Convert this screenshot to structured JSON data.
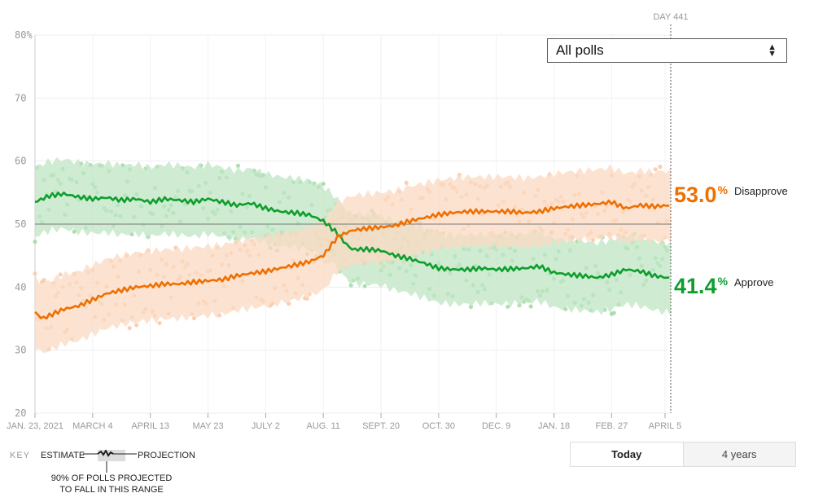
{
  "chart_data": {
    "type": "line",
    "title": "",
    "xlabel": "",
    "ylabel": "",
    "ylim": [
      20,
      80
    ],
    "y_ticks": [
      "80%",
      "70",
      "60",
      "50",
      "40",
      "30",
      "20"
    ],
    "y_tick_values": [
      80,
      70,
      60,
      50,
      40,
      30,
      20
    ],
    "x_ticks": [
      "JAN. 23, 2021",
      "MARCH 4",
      "APRIL 13",
      "MAY 23",
      "JULY 2",
      "AUG. 11",
      "SEPT. 20",
      "OCT. 30",
      "DEC. 9",
      "JAN. 18",
      "FEB. 27",
      "APRIL 5"
    ],
    "x_tick_days": [
      0,
      40,
      80,
      120,
      160,
      200,
      240,
      280,
      320,
      360,
      400,
      437
    ],
    "x_range_days": [
      0,
      441
    ],
    "grid": true,
    "reference_line": 50,
    "marker_label": "DAY 441",
    "marker_day": 441,
    "series": [
      {
        "name": "Approve",
        "color": "#0e9e2e",
        "light_color": "#9fd9a6",
        "band_color": "#bfe6c3",
        "x": [
          0,
          10,
          20,
          30,
          40,
          50,
          60,
          70,
          80,
          90,
          100,
          110,
          120,
          130,
          140,
          150,
          160,
          170,
          180,
          190,
          200,
          205,
          210,
          215,
          220,
          230,
          240,
          250,
          260,
          270,
          280,
          290,
          300,
          310,
          320,
          330,
          340,
          350,
          360,
          370,
          380,
          390,
          400,
          410,
          420,
          430,
          441
        ],
        "values": [
          53.5,
          54.5,
          54.8,
          54.3,
          54.0,
          54.2,
          53.8,
          54.0,
          53.5,
          54.0,
          53.8,
          53.5,
          54.0,
          53.5,
          53.0,
          53.3,
          52.5,
          52.0,
          51.8,
          51.5,
          50.5,
          49.5,
          48.5,
          47.0,
          46.0,
          46.0,
          45.8,
          45.0,
          44.5,
          43.8,
          43.0,
          42.8,
          42.8,
          43.0,
          42.8,
          42.9,
          43.0,
          43.3,
          42.3,
          42.0,
          41.8,
          41.5,
          42.0,
          42.8,
          42.5,
          41.8,
          41.4
        ],
        "band_width": 5.5,
        "final_value": "41.4",
        "final_label": "Approve"
      },
      {
        "name": "Disapprove",
        "color": "#ef6f00",
        "light_color": "#f8c8a4",
        "band_color": "#fbd9c1",
        "x": [
          0,
          5,
          10,
          15,
          20,
          30,
          40,
          50,
          60,
          70,
          80,
          90,
          100,
          110,
          120,
          130,
          140,
          150,
          160,
          170,
          180,
          190,
          200,
          205,
          210,
          215,
          220,
          230,
          240,
          250,
          260,
          270,
          280,
          290,
          300,
          310,
          320,
          330,
          340,
          350,
          360,
          370,
          380,
          390,
          400,
          410,
          420,
          430,
          441
        ],
        "values": [
          36.0,
          35.0,
          35.5,
          36.0,
          36.5,
          37.0,
          38.0,
          39.0,
          39.5,
          40.0,
          40.2,
          40.5,
          40.5,
          40.8,
          41.0,
          41.2,
          41.8,
          42.2,
          42.5,
          43.0,
          43.5,
          44.0,
          45.0,
          46.5,
          48.0,
          48.5,
          49.0,
          49.3,
          49.5,
          49.8,
          50.5,
          51.0,
          51.5,
          51.8,
          52.0,
          52.0,
          52.0,
          52.0,
          51.8,
          52.0,
          52.5,
          52.8,
          53.0,
          53.2,
          53.5,
          52.5,
          53.0,
          52.8,
          53.0
        ],
        "band_width": 5.5,
        "final_value": "53.0",
        "final_label": "Disapprove"
      }
    ]
  },
  "filter": {
    "selected": "All polls"
  },
  "range_toggle": {
    "today": "Today",
    "four_years": "4 years"
  },
  "key": {
    "title": "KEY",
    "estimate": "ESTIMATE",
    "projection": "PROJECTION",
    "note_line1": "90% OF POLLS PROJECTED",
    "note_line2": "TO FALL IN THIS RANGE"
  },
  "pct_symbol": "%"
}
